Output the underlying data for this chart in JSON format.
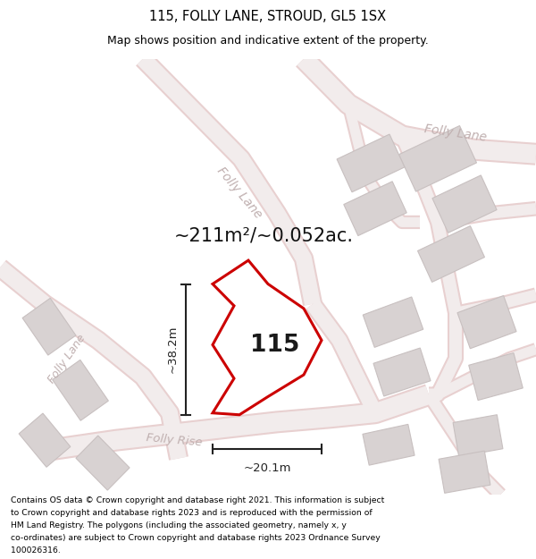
{
  "title": "115, FOLLY LANE, STROUD, GL5 1SX",
  "subtitle": "Map shows position and indicative extent of the property.",
  "area_text": "~211m²/~0.052ac.",
  "label_115": "115",
  "dim_width": "~20.1m",
  "dim_height": "~38.2m",
  "footer": "Contains OS data © Crown copyright and database right 2021. This information is subject to Crown copyright and database rights 2023 and is reproduced with the permission of HM Land Registry. The polygons (including the associated geometry, namely x, y co-ordinates) are subject to Crown copyright and database rights 2023 Ordnance Survey 100026316.",
  "bg_color": "#f8f5f5",
  "road_fill": "#f2ecec",
  "road_edge": "#e8d0d0",
  "road_label_color": "#c0b0b0",
  "building_fill": "#d8d2d2",
  "building_edge": "#c8c0c0",
  "plot_color": "#cc0000",
  "dim_color": "#222222",
  "text_color": "#111111",
  "title_color": "#000000",
  "footer_color": "#000000",
  "figsize": [
    6.0,
    6.25
  ],
  "dpi": 100
}
